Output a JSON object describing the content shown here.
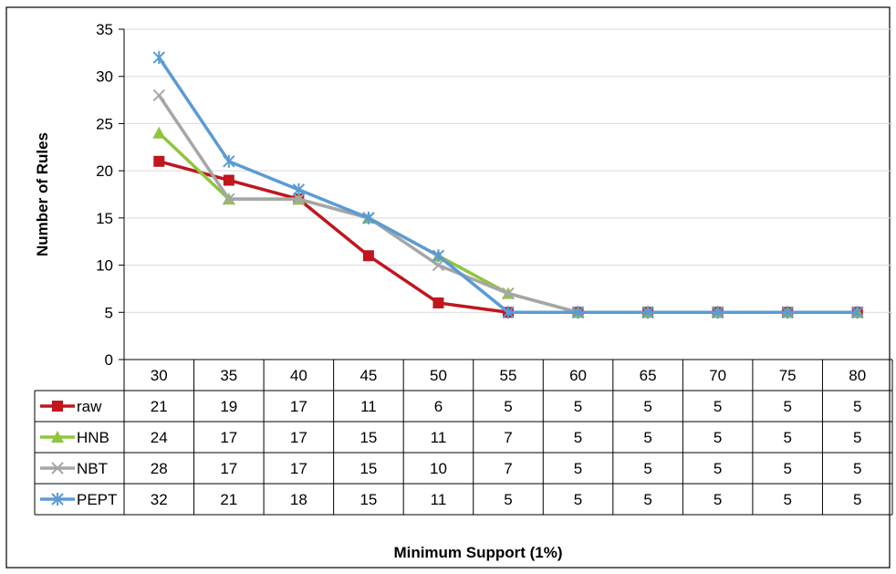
{
  "chart_data": {
    "type": "line",
    "xlabel": "Minimum Support (1%)",
    "ylabel": "Number of Rules",
    "ylim": [
      0,
      35
    ],
    "yticks": [
      0,
      5,
      10,
      15,
      20,
      25,
      30,
      35
    ],
    "grid": true,
    "legend": "data-table",
    "categories": [
      "30",
      "35",
      "40",
      "45",
      "50",
      "55",
      "60",
      "65",
      "70",
      "75",
      "80"
    ],
    "series": [
      {
        "name": "raw",
        "color": "#c0161e",
        "marker": "square",
        "values": [
          21,
          19,
          17,
          11,
          6,
          5,
          5,
          5,
          5,
          5,
          5
        ]
      },
      {
        "name": "HNB",
        "color": "#8ec63f",
        "marker": "triangle",
        "values": [
          24,
          17,
          17,
          15,
          11,
          7,
          5,
          5,
          5,
          5,
          5
        ]
      },
      {
        "name": "NBT",
        "color": "#a6a6a6",
        "marker": "x",
        "values": [
          28,
          17,
          17,
          15,
          10,
          7,
          5,
          5,
          5,
          5,
          5
        ]
      },
      {
        "name": "PEPT",
        "color": "#5b9bd5",
        "marker": "star",
        "values": [
          32,
          21,
          18,
          15,
          11,
          5,
          5,
          5,
          5,
          5,
          5
        ]
      }
    ]
  }
}
